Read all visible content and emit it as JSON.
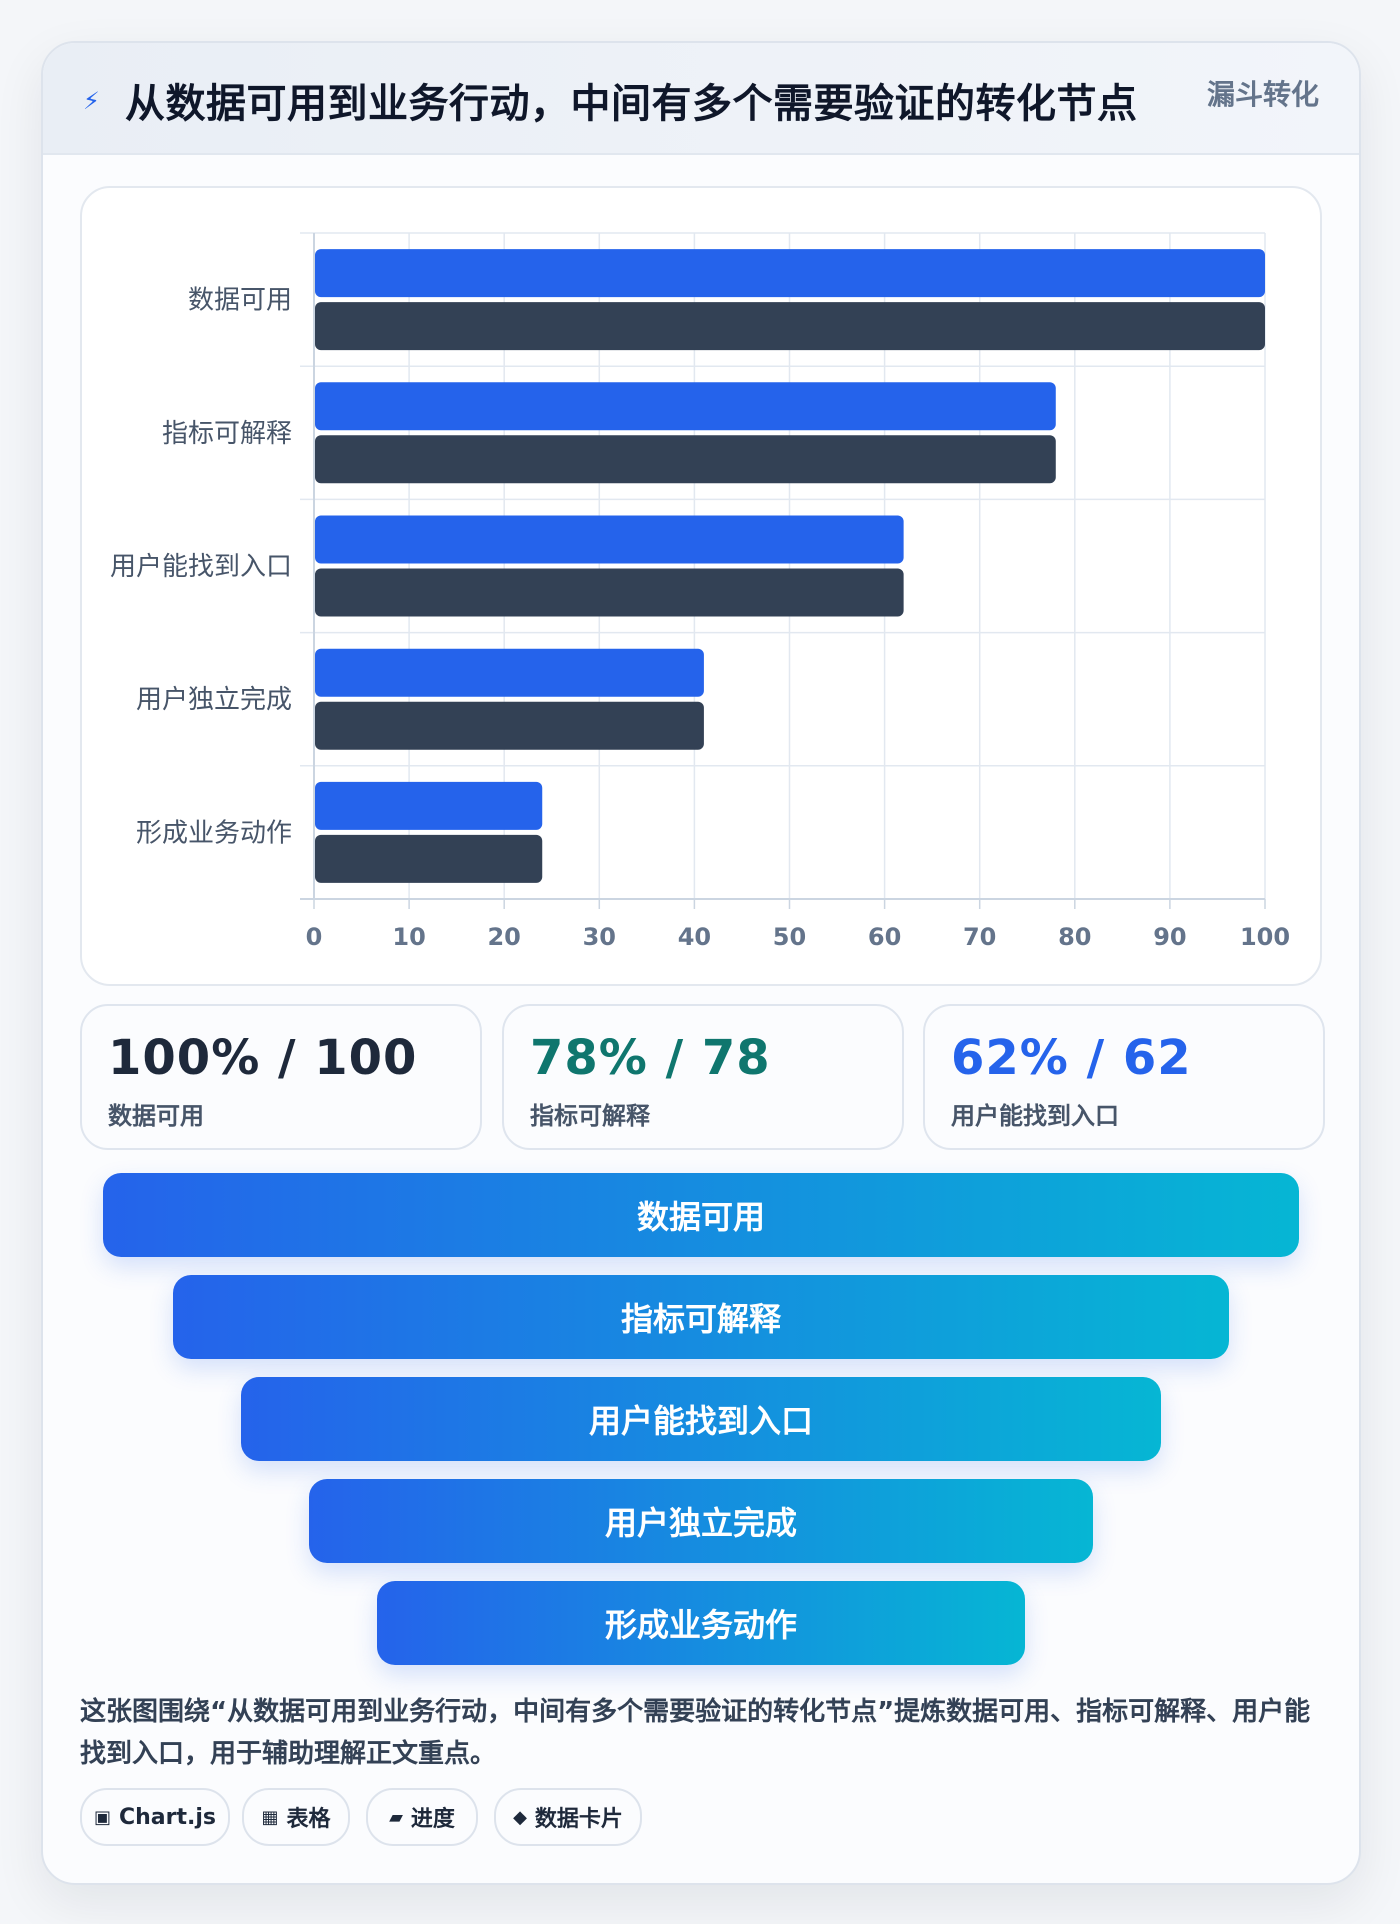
{
  "header": {
    "icon": "lightning-icon",
    "title": "从数据可用到业务行动，中间有多个需要验证的转化节点",
    "tag": "漏斗转化"
  },
  "chart_data": {
    "type": "bar",
    "orientation": "horizontal",
    "categories": [
      "数据可用",
      "指标可解释",
      "用户能找到入口",
      "用户独立完成",
      "形成业务动作"
    ],
    "series": [
      {
        "values": [
          100,
          78,
          62,
          41,
          24
        ],
        "color": "#2563eb"
      },
      {
        "values": [
          100,
          78,
          62,
          41,
          24
        ],
        "color": "#334155"
      }
    ],
    "xlim": [
      0,
      100
    ],
    "xticks": [
      "0",
      "10",
      "20",
      "30",
      "40",
      "50",
      "60",
      "70",
      "80",
      "90",
      "100"
    ],
    "grid": true
  },
  "stats": [
    {
      "value": "100% / 100",
      "label": "数据可用",
      "color": "#1e293b"
    },
    {
      "value": "78% / 78",
      "label": "指标可解释",
      "color": "#0f766e"
    },
    {
      "value": "62% / 62",
      "label": "用户能找到入口",
      "color": "#2563eb"
    }
  ],
  "funnel": [
    {
      "label": "数据可用"
    },
    {
      "label": "指标可解释"
    },
    {
      "label": "用户能找到入口"
    },
    {
      "label": "用户独立完成"
    },
    {
      "label": "形成业务动作"
    }
  ],
  "summary": "这张图围绕“从数据可用到业务行动，中间有多个需要验证的转化节点”提炼数据可用、指标可解释、用户能找到入口，用于辅助理解正文重点。",
  "chips": [
    {
      "icon": "▣",
      "label": "Chart.js"
    },
    {
      "icon": "▦",
      "label": "表格"
    },
    {
      "icon": "▰",
      "label": "进度"
    },
    {
      "icon": "◆",
      "label": "数据卡片"
    }
  ]
}
